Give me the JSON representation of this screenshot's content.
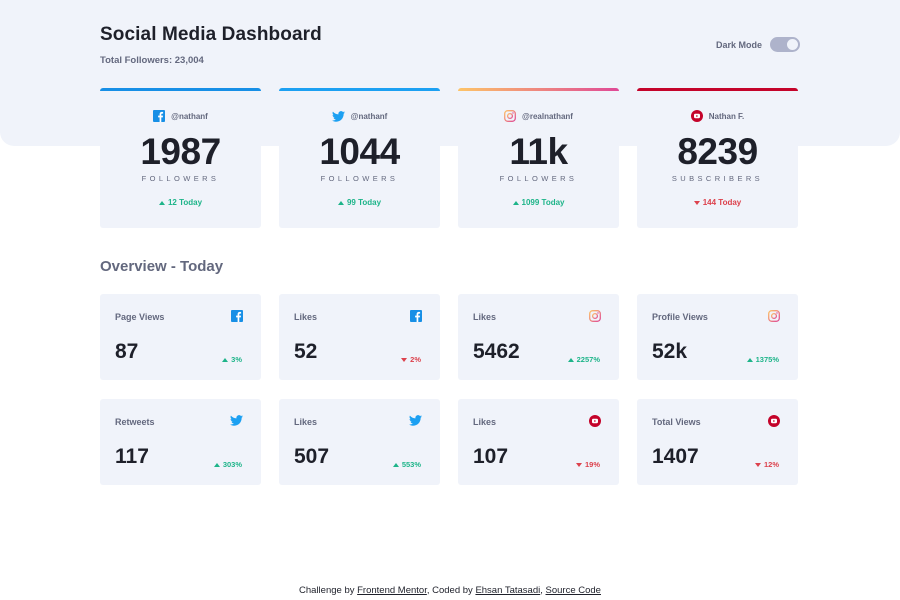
{
  "header": {
    "title": "Social Media Dashboard",
    "subtitle": "Total Followers: 23,004",
    "dark_mode_label": "Dark Mode"
  },
  "colors": {
    "facebook": "#178fe6",
    "twitter": "#1ca0f2",
    "instagram_start": "#fdc468",
    "instagram_end": "#df4996",
    "youtube": "#c4032a",
    "up": "#1db489",
    "down": "#dc414c"
  },
  "cards": [
    {
      "network": "facebook",
      "icon": "facebook-icon",
      "handle": "@nathanf",
      "count": "1987",
      "label": "FOLLOWERS",
      "today": "12 Today",
      "trend": "up"
    },
    {
      "network": "twitter",
      "icon": "twitter-icon",
      "handle": "@nathanf",
      "count": "1044",
      "label": "FOLLOWERS",
      "today": "99 Today",
      "trend": "up"
    },
    {
      "network": "instagram",
      "icon": "instagram-icon",
      "handle": "@realnathanf",
      "count": "11k",
      "label": "FOLLOWERS",
      "today": "1099 Today",
      "trend": "up"
    },
    {
      "network": "youtube",
      "icon": "youtube-icon",
      "handle": "Nathan F.",
      "count": "8239",
      "label": "SUBSCRIBERS",
      "today": "144 Today",
      "trend": "down"
    }
  ],
  "overview": {
    "title": "Overview - Today",
    "items": [
      {
        "label": "Page Views",
        "icon": "facebook-icon",
        "value": "87",
        "change": "3%",
        "trend": "up"
      },
      {
        "label": "Likes",
        "icon": "facebook-icon",
        "value": "52",
        "change": "2%",
        "trend": "down"
      },
      {
        "label": "Likes",
        "icon": "instagram-icon",
        "value": "5462",
        "change": "2257%",
        "trend": "up"
      },
      {
        "label": "Profile Views",
        "icon": "instagram-icon",
        "value": "52k",
        "change": "1375%",
        "trend": "up"
      },
      {
        "label": "Retweets",
        "icon": "twitter-icon",
        "value": "117",
        "change": "303%",
        "trend": "up"
      },
      {
        "label": "Likes",
        "icon": "twitter-icon",
        "value": "507",
        "change": "553%",
        "trend": "up"
      },
      {
        "label": "Likes",
        "icon": "youtube-icon",
        "value": "107",
        "change": "19%",
        "trend": "down"
      },
      {
        "label": "Total Views",
        "icon": "youtube-icon",
        "value": "1407",
        "change": "12%",
        "trend": "down"
      }
    ]
  },
  "footer": {
    "prefix": "Challenge by ",
    "link1": "Frontend Mentor",
    "middle": ", Coded by ",
    "link2": "Ehsan Tatasadi",
    "sep": ", ",
    "link3": "Source Code"
  }
}
